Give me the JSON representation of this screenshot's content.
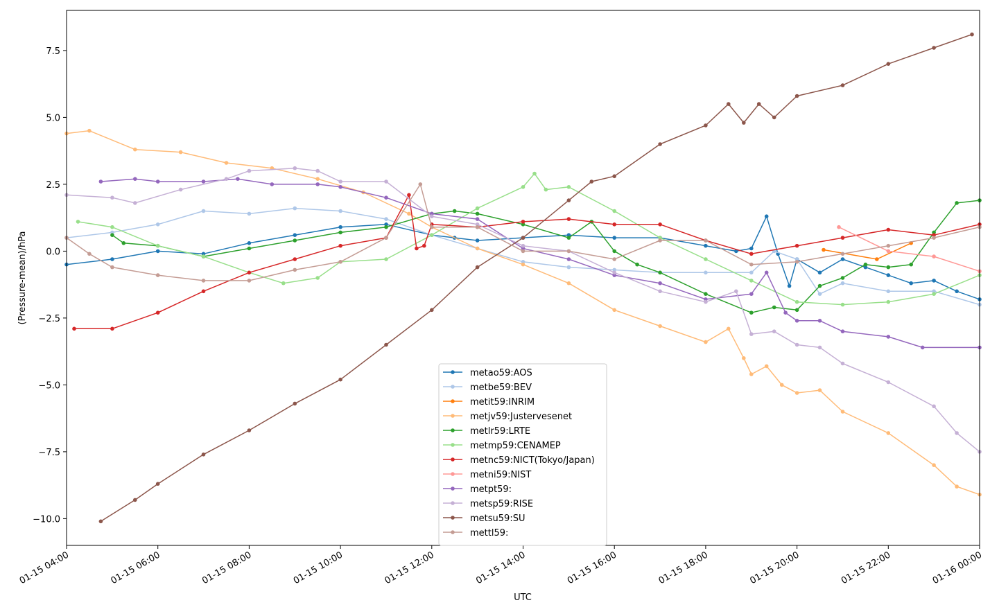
{
  "chart_data": {
    "type": "line",
    "title": "",
    "xlabel": "UTC",
    "ylabel": "(Pressure-mean)/hPa",
    "xlim": [
      "01-15 04:00",
      "01-16 00:00"
    ],
    "ylim": [
      -11.0,
      9.0
    ],
    "grid": false,
    "legend_position": "lower-center",
    "x_ticks": [
      "01-15 04:00",
      "01-15 06:00",
      "01-15 08:00",
      "01-15 10:00",
      "01-15 12:00",
      "01-15 14:00",
      "01-15 16:00",
      "01-15 18:00",
      "01-15 20:00",
      "01-15 22:00",
      "01-16 00:00"
    ],
    "y_ticks": [
      -10.0,
      -7.5,
      -5.0,
      -2.5,
      0.0,
      2.5,
      5.0,
      7.5
    ],
    "y_tick_labels": [
      "−10.0",
      "−7.5",
      "−5.0",
      "−2.5",
      "0.0",
      "2.5",
      "5.0",
      "7.5"
    ],
    "series": [
      {
        "name": "metao59:AOS",
        "color": "#1f77b4",
        "x": [
          "01-15 04:00",
          "01-15 05:00",
          "01-15 06:00",
          "01-15 07:00",
          "01-15 08:00",
          "01-15 09:00",
          "01-15 10:00",
          "01-15 11:00",
          "01-15 12:00",
          "01-15 12:30",
          "01-15 13:00",
          "01-15 14:00",
          "01-15 15:00",
          "01-15 16:00",
          "01-15 17:00",
          "01-15 18:00",
          "01-15 18:40",
          "01-15 19:00",
          "01-15 19:20",
          "01-15 19:35",
          "01-15 19:50",
          "01-15 20:00",
          "01-15 20:30",
          "01-15 21:00",
          "01-15 21:30",
          "01-15 22:00",
          "01-15 22:30",
          "01-15 23:00",
          "01-15 23:30",
          "01-16 00:00"
        ],
        "y": [
          -0.5,
          -0.3,
          0.0,
          -0.1,
          0.3,
          0.6,
          0.9,
          1.0,
          0.6,
          0.5,
          0.4,
          0.5,
          0.6,
          0.5,
          0.5,
          0.2,
          0.0,
          0.1,
          1.3,
          -0.1,
          -1.3,
          -0.3,
          -0.8,
          -0.3,
          -0.6,
          -0.9,
          -1.2,
          -1.1,
          -1.5,
          -1.8
        ]
      },
      {
        "name": "metbe59:BEV",
        "color": "#aec7e8",
        "x": [
          "01-15 04:00",
          "01-15 05:00",
          "01-15 06:00",
          "01-15 07:00",
          "01-15 08:00",
          "01-15 09:00",
          "01-15 10:00",
          "01-15 11:00",
          "01-15 12:00",
          "01-15 13:00",
          "01-15 14:00",
          "01-15 15:00",
          "01-15 16:00",
          "01-15 17:00",
          "01-15 18:00",
          "01-15 19:00",
          "01-15 19:30",
          "01-15 20:00",
          "01-15 20:30",
          "01-15 21:00",
          "01-15 22:00",
          "01-15 23:00",
          "01-16 00:00"
        ],
        "y": [
          0.5,
          0.7,
          1.0,
          1.5,
          1.4,
          1.6,
          1.5,
          1.2,
          0.6,
          0.1,
          -0.4,
          -0.6,
          -0.7,
          -0.8,
          -0.8,
          -0.8,
          0.0,
          -0.3,
          -1.6,
          -1.2,
          -1.5,
          -1.5,
          -2.0
        ]
      },
      {
        "name": "metit59:INRIM",
        "color": "#ff7f0e",
        "x": [
          "01-15 20:35",
          "01-15 21:45",
          "01-15 22:30"
        ],
        "y": [
          0.05,
          -0.3,
          0.3
        ]
      },
      {
        "name": "metjv59:Justervesenet",
        "color": "#ffbb78",
        "x": [
          "01-15 04:00",
          "01-15 04:30",
          "01-15 05:30",
          "01-15 06:30",
          "01-15 07:30",
          "01-15 08:30",
          "01-15 09:30",
          "01-15 10:30",
          "01-15 11:30",
          "01-15 12:00",
          "01-15 13:00",
          "01-15 14:00",
          "01-15 15:00",
          "01-15 16:00",
          "01-15 17:00",
          "01-15 18:00",
          "01-15 18:30",
          "01-15 18:50",
          "01-15 19:00",
          "01-15 19:20",
          "01-15 19:40",
          "01-15 20:00",
          "01-15 20:30",
          "01-15 21:00",
          "01-15 22:00",
          "01-15 23:00",
          "01-15 23:30",
          "01-16 00:00"
        ],
        "y": [
          4.4,
          4.5,
          3.8,
          3.7,
          3.3,
          3.1,
          2.7,
          2.2,
          1.4,
          0.9,
          0.1,
          -0.5,
          -1.2,
          -2.2,
          -2.8,
          -3.4,
          -2.9,
          -4.0,
          -4.6,
          -4.3,
          -5.0,
          -5.3,
          -5.2,
          -6.0,
          -6.8,
          -8.0,
          -8.8,
          -9.1
        ]
      },
      {
        "name": "metlr59:LRTE",
        "color": "#2ca02c",
        "x": [
          "01-15 05:00",
          "01-15 05:15",
          "01-15 06:00",
          "01-15 07:00",
          "01-15 08:00",
          "01-15 09:00",
          "01-15 10:00",
          "01-15 11:00",
          "01-15 12:00",
          "01-15 12:30",
          "01-15 13:00",
          "01-15 14:00",
          "01-15 15:00",
          "01-15 15:30",
          "01-15 16:00",
          "01-15 16:30",
          "01-15 17:00",
          "01-15 18:00",
          "01-15 19:00",
          "01-15 19:30",
          "01-15 20:00",
          "01-15 20:30",
          "01-15 21:00",
          "01-15 21:30",
          "01-15 22:00",
          "01-15 22:30",
          "01-15 23:00",
          "01-15 23:30",
          "01-16 00:00"
        ],
        "y": [
          0.6,
          0.3,
          0.2,
          -0.2,
          0.1,
          0.4,
          0.7,
          0.9,
          1.4,
          1.5,
          1.4,
          1.0,
          0.5,
          1.1,
          0.0,
          -0.5,
          -0.8,
          -1.6,
          -2.3,
          -2.1,
          -2.2,
          -1.3,
          -1.0,
          -0.5,
          -0.6,
          -0.5,
          0.7,
          1.8,
          1.9
        ]
      },
      {
        "name": "metmp59:CENAMEP",
        "color": "#98df8a",
        "x": [
          "01-15 04:15",
          "01-15 05:00",
          "01-15 06:00",
          "01-15 07:00",
          "01-15 08:00",
          "01-15 08:45",
          "01-15 09:30",
          "01-15 10:00",
          "01-15 11:00",
          "01-15 12:00",
          "01-15 13:00",
          "01-15 14:00",
          "01-15 14:15",
          "01-15 14:30",
          "01-15 15:00",
          "01-15 16:00",
          "01-15 17:00",
          "01-15 18:00",
          "01-15 19:00",
          "01-15 20:00",
          "01-15 21:00",
          "01-15 22:00",
          "01-15 23:00",
          "01-16 00:00"
        ],
        "y": [
          1.1,
          0.9,
          0.2,
          -0.2,
          -0.8,
          -1.2,
          -1.0,
          -0.4,
          -0.3,
          0.6,
          1.6,
          2.4,
          2.9,
          2.3,
          2.4,
          1.5,
          0.5,
          -0.3,
          -1.1,
          -1.9,
          -2.0,
          -1.9,
          -1.6,
          -0.9
        ]
      },
      {
        "name": "metnc59:NICT(Tokyo/Japan)",
        "color": "#d62728",
        "x": [
          "01-15 04:10",
          "01-15 05:00",
          "01-15 06:00",
          "01-15 07:00",
          "01-15 08:00",
          "01-15 09:00",
          "01-15 10:00",
          "01-15 11:00",
          "01-15 11:30",
          "01-15 11:40",
          "01-15 11:50",
          "01-15 12:00",
          "01-15 13:00",
          "01-15 14:00",
          "01-15 15:00",
          "01-15 16:00",
          "01-15 17:00",
          "01-15 18:00",
          "01-15 19:00",
          "01-15 20:00",
          "01-15 21:00",
          "01-15 22:00",
          "01-15 23:00",
          "01-16 00:00"
        ],
        "y": [
          -2.9,
          -2.9,
          -2.3,
          -1.5,
          -0.8,
          -0.3,
          0.2,
          0.5,
          2.1,
          0.1,
          0.2,
          1.0,
          0.9,
          1.1,
          1.2,
          1.0,
          1.0,
          0.4,
          -0.1,
          0.2,
          0.5,
          0.8,
          0.6,
          1.0
        ]
      },
      {
        "name": "metni59:NIST",
        "color": "#ff9896",
        "x": [
          "01-15 20:55",
          "01-15 22:00",
          "01-15 23:00",
          "01-16 00:00"
        ],
        "y": [
          0.9,
          0.0,
          -0.2,
          -0.75
        ]
      },
      {
        "name": "metpt59:",
        "color": "#9467bd",
        "x": [
          "01-15 04:45",
          "01-15 05:30",
          "01-15 06:00",
          "01-15 07:00",
          "01-15 07:45",
          "01-15 08:30",
          "01-15 09:30",
          "01-15 10:00",
          "01-15 11:00",
          "01-15 12:00",
          "01-15 13:00",
          "01-15 14:00",
          "01-15 15:00",
          "01-15 16:00",
          "01-15 17:00",
          "01-15 18:00",
          "01-15 19:00",
          "01-15 19:20",
          "01-15 19:45",
          "01-15 20:00",
          "01-15 20:30",
          "01-15 21:00",
          "01-15 22:00",
          "01-15 22:45",
          "01-16 00:00"
        ],
        "y": [
          2.6,
          2.7,
          2.6,
          2.6,
          2.7,
          2.5,
          2.5,
          2.4,
          2.0,
          1.4,
          1.2,
          0.1,
          -0.3,
          -0.9,
          -1.2,
          -1.8,
          -1.6,
          -0.8,
          -2.3,
          -2.6,
          -2.6,
          -3.0,
          -3.2,
          -3.6,
          -3.6
        ]
      },
      {
        "name": "metsp59:RISE",
        "color": "#c5b0d5",
        "x": [
          "01-15 04:00",
          "01-15 05:00",
          "01-15 05:30",
          "01-15 06:30",
          "01-15 07:30",
          "01-15 08:00",
          "01-15 09:00",
          "01-15 09:30",
          "01-15 10:00",
          "01-15 11:00",
          "01-15 12:00",
          "01-15 13:00",
          "01-15 14:00",
          "01-15 15:00",
          "01-15 16:00",
          "01-15 17:00",
          "01-15 18:00",
          "01-15 18:40",
          "01-15 19:00",
          "01-15 19:30",
          "01-15 20:00",
          "01-15 20:30",
          "01-15 21:00",
          "01-15 22:00",
          "01-15 23:00",
          "01-15 23:30",
          "01-16 00:00"
        ],
        "y": [
          2.1,
          2.0,
          1.8,
          2.3,
          2.7,
          3.0,
          3.1,
          3.0,
          2.6,
          2.6,
          1.3,
          1.0,
          0.2,
          0.0,
          -0.8,
          -1.5,
          -1.9,
          -1.5,
          -3.1,
          -3.0,
          -3.5,
          -3.6,
          -4.2,
          -4.9,
          -5.8,
          -6.8,
          -7.5
        ]
      },
      {
        "name": "metsu59:SU",
        "color": "#8c564b",
        "x": [
          "01-15 04:45",
          "01-15 05:30",
          "01-15 06:00",
          "01-15 07:00",
          "01-15 08:00",
          "01-15 09:00",
          "01-15 10:00",
          "01-15 11:00",
          "01-15 12:00",
          "01-15 13:00",
          "01-15 14:00",
          "01-15 15:00",
          "01-15 15:30",
          "01-15 16:00",
          "01-15 17:00",
          "01-15 18:00",
          "01-15 18:30",
          "01-15 18:50",
          "01-15 19:10",
          "01-15 19:30",
          "01-15 20:00",
          "01-15 21:00",
          "01-15 22:00",
          "01-15 23:00",
          "01-15 23:50"
        ],
        "y": [
          -10.1,
          -9.3,
          -8.7,
          -7.6,
          -6.7,
          -5.7,
          -4.8,
          -3.5,
          -2.2,
          -0.6,
          0.5,
          1.9,
          2.6,
          2.8,
          4.0,
          4.7,
          5.5,
          4.8,
          5.5,
          5.0,
          5.8,
          6.2,
          7.0,
          7.6,
          8.1
        ]
      },
      {
        "name": "mettl59:",
        "color": "#c49c94",
        "x": [
          "01-15 04:00",
          "01-15 04:30",
          "01-15 05:00",
          "01-15 06:00",
          "01-15 07:00",
          "01-15 08:00",
          "01-15 09:00",
          "01-15 10:00",
          "01-15 11:00",
          "01-15 11:45",
          "01-15 12:00",
          "01-15 13:00",
          "01-15 14:00",
          "01-15 15:00",
          "01-15 16:00",
          "01-15 17:00",
          "01-15 18:00",
          "01-15 19:00",
          "01-15 20:00",
          "01-15 21:00",
          "01-15 22:00",
          "01-15 23:00",
          "01-16 00:00"
        ],
        "y": [
          0.5,
          -0.1,
          -0.6,
          -0.9,
          -1.1,
          -1.1,
          -0.7,
          -0.4,
          0.5,
          2.5,
          0.9,
          0.9,
          0.0,
          0.0,
          -0.3,
          0.4,
          0.4,
          -0.5,
          -0.4,
          -0.1,
          0.2,
          0.5,
          0.9
        ]
      }
    ]
  }
}
